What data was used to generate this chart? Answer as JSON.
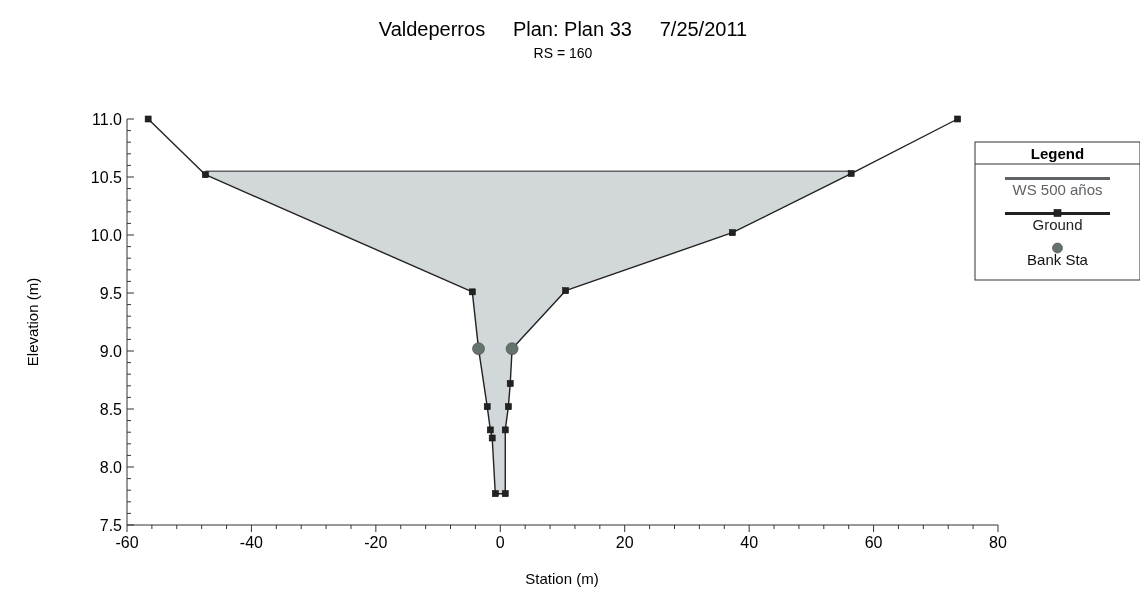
{
  "chart_data": {
    "type": "line",
    "title": "Valdeperros     Plan: Plan 33     7/25/2011",
    "subtitle": "RS = 160",
    "xlabel": "Station (m)",
    "ylabel": "Elevation (m)",
    "legend_title": "Legend",
    "legend": "right",
    "grid": false,
    "xlim": [
      -60,
      80
    ],
    "ylim": [
      7.5,
      11.0
    ],
    "xticks": [
      -60,
      {
        "value": -56,
        "label": null
      },
      {
        "value": -52,
        "label": null
      },
      {
        "value": -48,
        "label": null
      },
      {
        "value": -44,
        "label": null
      },
      -40,
      {
        "value": -36,
        "label": null
      },
      {
        "value": -32,
        "label": null
      },
      {
        "value": -28,
        "label": null
      },
      {
        "value": -24,
        "label": null
      },
      -20,
      {
        "value": -16,
        "label": null
      },
      {
        "value": -12,
        "label": null
      },
      {
        "value": -8,
        "label": null
      },
      {
        "value": -4,
        "label": null
      },
      0,
      {
        "value": 4,
        "label": null
      },
      {
        "value": 8,
        "label": null
      },
      {
        "value": 12,
        "label": null
      },
      {
        "value": 16,
        "label": null
      },
      20,
      {
        "value": 24,
        "label": null
      },
      {
        "value": 28,
        "label": null
      },
      {
        "value": 32,
        "label": null
      },
      {
        "value": 36,
        "label": null
      },
      40,
      {
        "value": 44,
        "label": null
      },
      {
        "value": 48,
        "label": null
      },
      {
        "value": 52,
        "label": null
      },
      {
        "value": 56,
        "label": null
      },
      60,
      {
        "value": 64,
        "label": null
      },
      {
        "value": 68,
        "label": null
      },
      {
        "value": 72,
        "label": null
      },
      {
        "value": 76,
        "label": null
      },
      80
    ],
    "yticks": [
      {
        "value": 7.5,
        "label": "7.5"
      },
      {
        "value": 7.6,
        "label": null
      },
      {
        "value": 7.7,
        "label": null
      },
      {
        "value": 7.8,
        "label": null
      },
      {
        "value": 7.9,
        "label": null
      },
      {
        "value": 8.0,
        "label": "8.0"
      },
      {
        "value": 8.1,
        "label": null
      },
      {
        "value": 8.2,
        "label": null
      },
      {
        "value": 8.3,
        "label": null
      },
      {
        "value": 8.4,
        "label": null
      },
      {
        "value": 8.5,
        "label": "8.5"
      },
      {
        "value": 8.6,
        "label": null
      },
      {
        "value": 8.7,
        "label": null
      },
      {
        "value": 8.8,
        "label": null
      },
      {
        "value": 8.9,
        "label": null
      },
      {
        "value": 9.0,
        "label": "9.0"
      },
      {
        "value": 9.1,
        "label": null
      },
      {
        "value": 9.2,
        "label": null
      },
      {
        "value": 9.3,
        "label": null
      },
      {
        "value": 9.4,
        "label": null
      },
      {
        "value": 9.5,
        "label": "9.5"
      },
      {
        "value": 9.6,
        "label": null
      },
      {
        "value": 9.7,
        "label": null
      },
      {
        "value": 9.8,
        "label": null
      },
      {
        "value": 9.9,
        "label": null
      },
      {
        "value": 10.0,
        "label": "10.0"
      },
      {
        "value": 10.1,
        "label": null
      },
      {
        "value": 10.2,
        "label": null
      },
      {
        "value": 10.3,
        "label": null
      },
      {
        "value": 10.4,
        "label": null
      },
      {
        "value": 10.5,
        "label": "10.5"
      },
      {
        "value": 10.6,
        "label": null
      },
      {
        "value": 10.7,
        "label": null
      },
      {
        "value": 10.8,
        "label": null
      },
      {
        "value": 10.9,
        "label": null
      },
      {
        "value": 11.0,
        "label": "11.0"
      }
    ],
    "series": [
      {
        "name": "WS 500 años",
        "color": "#5f6366",
        "marker": "none",
        "x": [
          -47.4,
          -4.5,
          -3.5,
          -2.1,
          -1.6,
          -1.3,
          -0.8,
          0.8,
          0.8,
          1.3,
          1.6,
          1.9,
          10.5,
          37.3,
          56.4
        ],
        "values": [
          10.55,
          10.55,
          10.55,
          10.55,
          10.55,
          10.55,
          10.55,
          10.55,
          10.55,
          10.55,
          10.55,
          10.55,
          10.55,
          10.55,
          10.55
        ],
        "lower": [
          10.52,
          9.51,
          9.02,
          8.52,
          8.32,
          8.25,
          7.77,
          7.77,
          8.32,
          8.52,
          8.72,
          9.02,
          9.52,
          10.02,
          10.53
        ],
        "upper": [
          10.55,
          10.55,
          10.55,
          10.55,
          10.55,
          10.55,
          10.55,
          10.55,
          10.55,
          10.55,
          10.55,
          10.55,
          10.55,
          10.55,
          10.55
        ]
      },
      {
        "name": "Ground",
        "type": "line",
        "color": "#222222",
        "marker": "square",
        "x": [
          -56.6,
          -47.4,
          -4.5,
          -3.5,
          -2.1,
          -1.6,
          -1.3,
          -0.8,
          0.8,
          0.8,
          1.3,
          1.6,
          1.9,
          10.5,
          37.3,
          56.4,
          73.5
        ],
        "values": [
          11.0,
          10.52,
          9.51,
          9.02,
          8.52,
          8.32,
          8.25,
          7.77,
          7.77,
          8.32,
          8.52,
          8.72,
          9.02,
          9.52,
          10.02,
          10.53,
          11.0
        ]
      },
      {
        "name": "Bank Sta",
        "type": "scatter",
        "color": "#65726e",
        "marker": "circle",
        "x": [
          -3.5,
          1.9
        ],
        "values": [
          9.02,
          9.02
        ]
      }
    ]
  }
}
